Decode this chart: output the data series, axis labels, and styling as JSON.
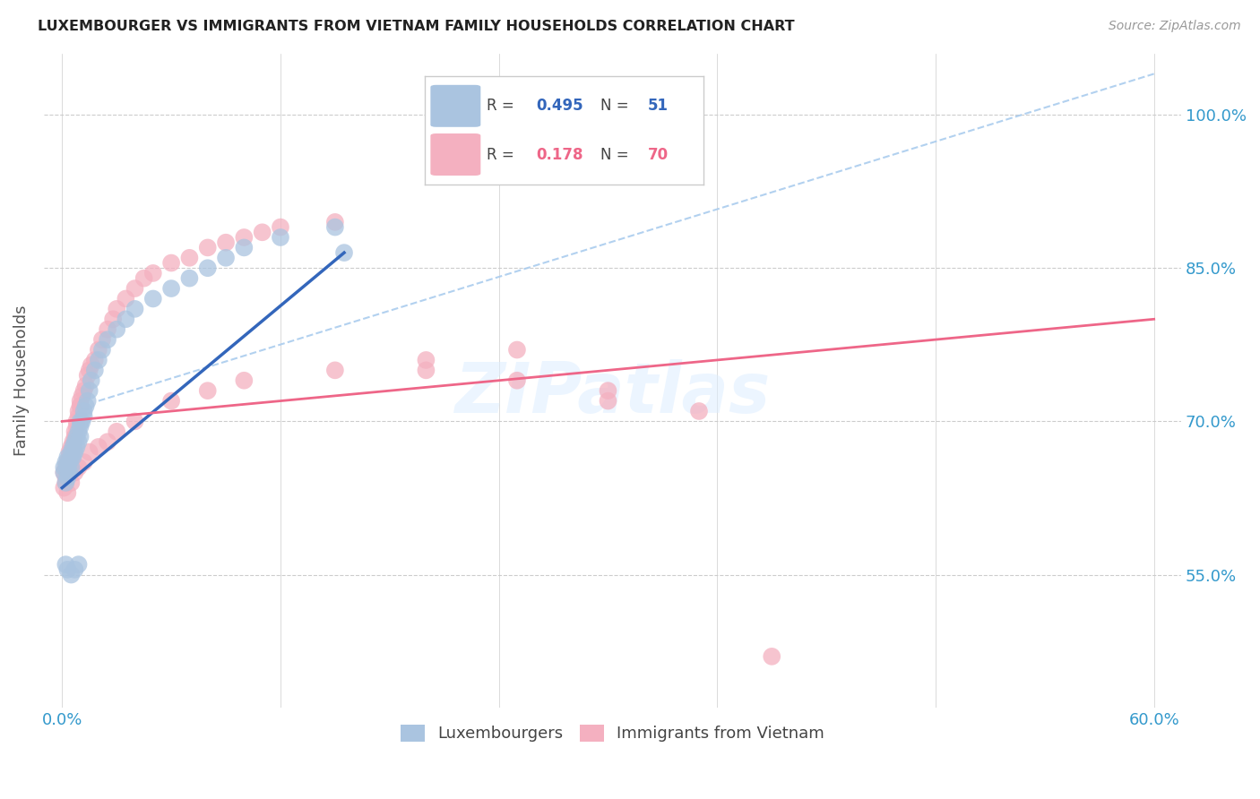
{
  "title": "LUXEMBOURGER VS IMMIGRANTS FROM VIETNAM FAMILY HOUSEHOLDS CORRELATION CHART",
  "source": "Source: ZipAtlas.com",
  "ylabel": "Family Households",
  "xlim": [
    0.0,
    0.6
  ],
  "ylim": [
    0.42,
    1.06
  ],
  "legend_blue_r": "0.495",
  "legend_blue_n": "51",
  "legend_pink_r": "0.178",
  "legend_pink_n": "70",
  "blue_color": "#aac4e0",
  "pink_color": "#f4b0c0",
  "blue_line_color": "#3366bb",
  "pink_line_color": "#ee6688",
  "dashed_line_color": "#aaccee",
  "blue_line_x": [
    0.0,
    0.155
  ],
  "blue_line_y": [
    0.635,
    0.865
  ],
  "pink_line_x": [
    0.0,
    0.6
  ],
  "pink_line_y": [
    0.7,
    0.8
  ],
  "dash_line_x": [
    0.02,
    0.6
  ],
  "dash_line_y": [
    0.72,
    1.04
  ],
  "blue_x": [
    0.001,
    0.001,
    0.002,
    0.002,
    0.003,
    0.003,
    0.003,
    0.004,
    0.004,
    0.005,
    0.005,
    0.005,
    0.006,
    0.006,
    0.007,
    0.007,
    0.008,
    0.008,
    0.009,
    0.009,
    0.01,
    0.01,
    0.01,
    0.011,
    0.012,
    0.012,
    0.013,
    0.014,
    0.015,
    0.016,
    0.018,
    0.02,
    0.022,
    0.025,
    0.03,
    0.035,
    0.04,
    0.05,
    0.06,
    0.07,
    0.08,
    0.09,
    0.1,
    0.12,
    0.15,
    0.002,
    0.003,
    0.005,
    0.007,
    0.009,
    0.155
  ],
  "blue_y": [
    0.65,
    0.655,
    0.64,
    0.66,
    0.645,
    0.655,
    0.665,
    0.65,
    0.66,
    0.655,
    0.665,
    0.67,
    0.665,
    0.675,
    0.67,
    0.68,
    0.675,
    0.685,
    0.68,
    0.69,
    0.685,
    0.695,
    0.7,
    0.7,
    0.705,
    0.71,
    0.715,
    0.72,
    0.73,
    0.74,
    0.75,
    0.76,
    0.77,
    0.78,
    0.79,
    0.8,
    0.81,
    0.82,
    0.83,
    0.84,
    0.85,
    0.86,
    0.87,
    0.88,
    0.89,
    0.56,
    0.555,
    0.55,
    0.555,
    0.56,
    0.865
  ],
  "pink_x": [
    0.001,
    0.002,
    0.002,
    0.003,
    0.003,
    0.004,
    0.004,
    0.005,
    0.005,
    0.006,
    0.006,
    0.007,
    0.007,
    0.008,
    0.008,
    0.009,
    0.009,
    0.01,
    0.01,
    0.011,
    0.012,
    0.013,
    0.014,
    0.015,
    0.016,
    0.018,
    0.02,
    0.022,
    0.025,
    0.028,
    0.03,
    0.035,
    0.04,
    0.045,
    0.05,
    0.06,
    0.07,
    0.08,
    0.09,
    0.1,
    0.11,
    0.12,
    0.15,
    0.2,
    0.25,
    0.3,
    0.003,
    0.005,
    0.007,
    0.009,
    0.012,
    0.015,
    0.02,
    0.025,
    0.03,
    0.04,
    0.06,
    0.08,
    0.1,
    0.15,
    0.2,
    0.25,
    0.3,
    0.35,
    0.001,
    0.002,
    0.004,
    0.006,
    0.01,
    0.39
  ],
  "pink_y": [
    0.65,
    0.645,
    0.655,
    0.655,
    0.66,
    0.66,
    0.67,
    0.665,
    0.675,
    0.67,
    0.68,
    0.685,
    0.69,
    0.695,
    0.7,
    0.705,
    0.71,
    0.715,
    0.72,
    0.725,
    0.73,
    0.735,
    0.745,
    0.75,
    0.755,
    0.76,
    0.77,
    0.78,
    0.79,
    0.8,
    0.81,
    0.82,
    0.83,
    0.84,
    0.845,
    0.855,
    0.86,
    0.87,
    0.875,
    0.88,
    0.885,
    0.89,
    0.895,
    0.75,
    0.74,
    0.72,
    0.63,
    0.64,
    0.65,
    0.655,
    0.66,
    0.67,
    0.675,
    0.68,
    0.69,
    0.7,
    0.72,
    0.73,
    0.74,
    0.75,
    0.76,
    0.77,
    0.73,
    0.71,
    0.635,
    0.64,
    0.665,
    0.675,
    0.715,
    0.47
  ]
}
